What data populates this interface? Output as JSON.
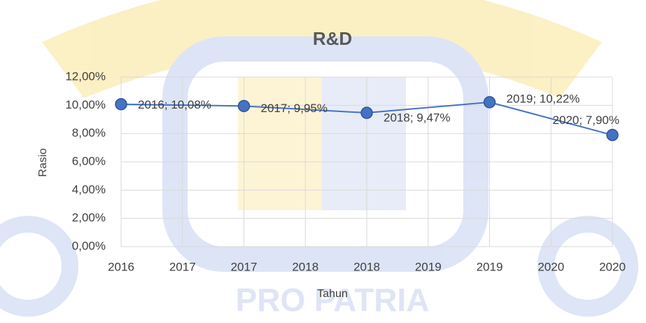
{
  "chart_data": {
    "type": "line",
    "title": "R&D",
    "x_label": "Tahun",
    "y_label": "Rasio",
    "watermark": "PRO PATRIA",
    "x": [
      2016,
      2017,
      2018,
      2019,
      2020
    ],
    "series": [
      {
        "name": "R&D",
        "color": "#4472c4",
        "values": [
          10.08,
          9.95,
          9.47,
          10.22,
          7.9
        ],
        "value_labels": [
          "2016; 10,08%",
          "2017; 9,95%",
          "2018; 9,47%",
          "2019; 10,22%",
          "2020; 7,90%"
        ]
      }
    ],
    "xlim": [
      2016,
      2020
    ],
    "xticks": [
      2016,
      {
        "value": 2016.5,
        "label": "2017"
      },
      2017,
      {
        "value": 2017.5,
        "label": "2018"
      },
      2018,
      {
        "value": 2018.5,
        "label": "2019"
      },
      2019,
      {
        "value": 2019.5,
        "label": "2020"
      },
      2020
    ],
    "ylim": [
      0,
      12
    ],
    "yticks": [
      {
        "value": 0,
        "label": "0,00%"
      },
      {
        "value": 2,
        "label": "2,00%"
      },
      {
        "value": 4,
        "label": "4,00%"
      },
      {
        "value": 6,
        "label": "6,00%"
      },
      {
        "value": 8,
        "label": "8,00%"
      },
      {
        "value": 10,
        "label": "10,00%"
      },
      {
        "value": 12,
        "label": "12,00%"
      }
    ],
    "grid": true
  }
}
